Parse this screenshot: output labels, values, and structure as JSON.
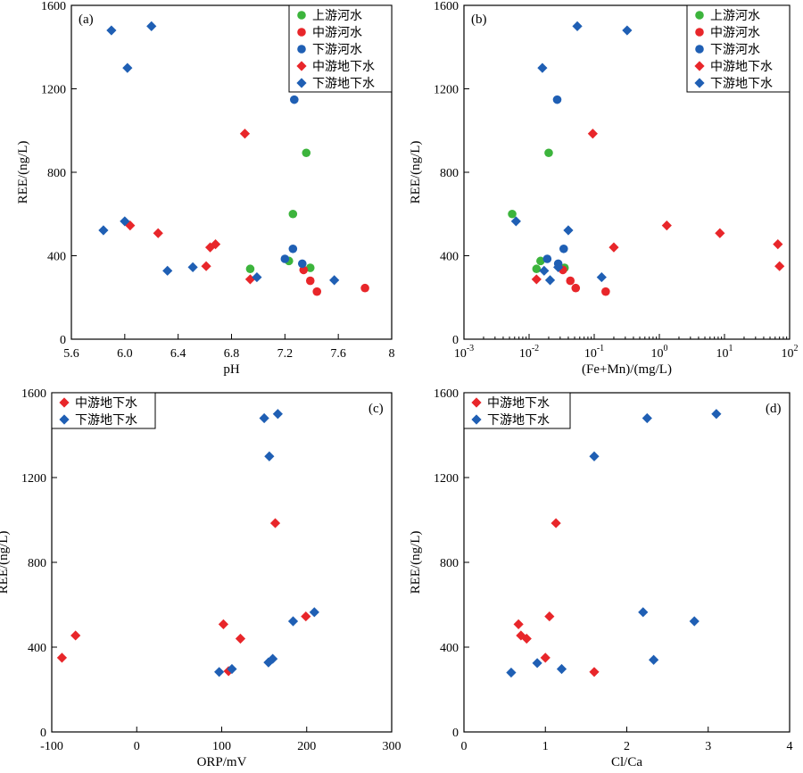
{
  "colors": {
    "upstream_river": "#3cb43c",
    "middle_river": "#e8262a",
    "lower_river": "#1f5fb4",
    "middle_groundwater": "#e8262a",
    "lower_groundwater": "#1f5fb4"
  },
  "legend_labels": {
    "upstream_river": "上游河水",
    "middle_river": "中游河水",
    "lower_river": "下游河水",
    "middle_groundwater": "中游地下水",
    "lower_groundwater": "下游地下水"
  },
  "chart_data": [
    {
      "id": "a",
      "panel_tag": "(a)",
      "type": "scatter",
      "xlabel": "pH",
      "ylabel": "REE/(ng/L)",
      "xlim": [
        5.6,
        8.0
      ],
      "ylim": [
        0,
        1600
      ],
      "xticks": [
        5.6,
        6.0,
        6.4,
        6.8,
        7.2,
        7.6,
        8.0
      ],
      "xtick_labels": [
        "5.6",
        "6.0",
        "6.4",
        "6.8",
        "7.2",
        "7.6",
        "8"
      ],
      "yticks": [
        0,
        400,
        800,
        1200,
        1600
      ],
      "ytick_labels": [
        "0",
        "400",
        "800",
        "1200",
        "1600"
      ],
      "x_scale": "linear",
      "legend_position": "top-right",
      "series": [
        {
          "name": "上游河水",
          "key": "upstream_river",
          "marker": "circle",
          "points": [
            [
              7.36,
              893
            ],
            [
              7.26,
              600
            ],
            [
              6.94,
              337
            ],
            [
              7.23,
              375
            ],
            [
              7.39,
              342
            ]
          ]
        },
        {
          "name": "中游河水",
          "key": "middle_river",
          "marker": "circle",
          "points": [
            [
              7.34,
              332
            ],
            [
              7.39,
              280
            ],
            [
              7.44,
              228
            ],
            [
              7.8,
              245
            ]
          ]
        },
        {
          "name": "下游河水",
          "key": "lower_river",
          "marker": "circle",
          "points": [
            [
              7.27,
              1148
            ],
            [
              7.26,
              433
            ],
            [
              7.2,
              385
            ],
            [
              7.33,
              362
            ]
          ]
        },
        {
          "name": "中游地下水",
          "key": "middle_groundwater",
          "marker": "diamond",
          "points": [
            [
              6.9,
              985
            ],
            [
              6.04,
              545
            ],
            [
              6.25,
              508
            ],
            [
              6.68,
              455
            ],
            [
              6.64,
              440
            ],
            [
              6.61,
              350
            ],
            [
              6.94,
              287
            ]
          ]
        },
        {
          "name": "下游地下水",
          "key": "lower_groundwater",
          "marker": "diamond",
          "points": [
            [
              5.9,
              1480
            ],
            [
              6.2,
              1500
            ],
            [
              6.02,
              1300
            ],
            [
              6.0,
              565
            ],
            [
              5.84,
              522
            ],
            [
              6.32,
              328
            ],
            [
              6.51,
              345
            ],
            [
              6.99,
              297
            ],
            [
              7.57,
              283
            ]
          ]
        }
      ]
    },
    {
      "id": "b",
      "panel_tag": "(b)",
      "type": "scatter",
      "xlabel": "(Fe+Mn)/(mg/L)",
      "ylabel": "REE/(ng/L)",
      "xlim": [
        0.001,
        100
      ],
      "ylim": [
        0,
        1600
      ],
      "x_scale": "log",
      "xticks": [
        0.001,
        0.01,
        0.1,
        1,
        10,
        100
      ],
      "xtick_labels": [
        [
          "10",
          "-3"
        ],
        [
          "10",
          "-2"
        ],
        [
          "10",
          "-1"
        ],
        [
          "10",
          "0"
        ],
        [
          "10",
          "1"
        ],
        [
          "10",
          "2"
        ]
      ],
      "yticks": [
        0,
        400,
        800,
        1200,
        1600
      ],
      "ytick_labels": [
        "0",
        "400",
        "800",
        "1200",
        "1600"
      ],
      "legend_position": "top-right",
      "series": [
        {
          "name": "上游河水",
          "key": "upstream_river",
          "marker": "circle",
          "points": [
            [
              0.02,
              893
            ],
            [
              0.0055,
              600
            ],
            [
              0.013,
              337
            ],
            [
              0.015,
              375
            ],
            [
              0.035,
              342
            ]
          ]
        },
        {
          "name": "中游河水",
          "key": "middle_river",
          "marker": "circle",
          "points": [
            [
              0.033,
              332
            ],
            [
              0.043,
              280
            ],
            [
              0.052,
              245
            ],
            [
              0.15,
              228
            ]
          ]
        },
        {
          "name": "下游河水",
          "key": "lower_river",
          "marker": "circle",
          "points": [
            [
              0.027,
              1148
            ],
            [
              0.034,
              433
            ],
            [
              0.019,
              385
            ],
            [
              0.028,
              362
            ]
          ]
        },
        {
          "name": "中游地下水",
          "key": "middle_groundwater",
          "marker": "diamond",
          "points": [
            [
              0.095,
              985
            ],
            [
              1.3,
              545
            ],
            [
              8.5,
              508
            ],
            [
              66,
              455
            ],
            [
              0.2,
              440
            ],
            [
              70,
              350
            ],
            [
              0.013,
              287
            ]
          ]
        },
        {
          "name": "下游地下水",
          "key": "lower_groundwater",
          "marker": "diamond",
          "points": [
            [
              0.055,
              1500
            ],
            [
              0.32,
              1480
            ],
            [
              0.016,
              1300
            ],
            [
              0.0063,
              565
            ],
            [
              0.04,
              522
            ],
            [
              0.017,
              328
            ],
            [
              0.028,
              345
            ],
            [
              0.021,
              283
            ],
            [
              0.13,
              297
            ]
          ]
        }
      ]
    },
    {
      "id": "c",
      "panel_tag": "(c)",
      "type": "scatter",
      "xlabel": "ORP/mV",
      "ylabel": "REE/(ng/L)",
      "xlim": [
        -100,
        300
      ],
      "ylim": [
        0,
        1600
      ],
      "x_scale": "linear",
      "xticks": [
        -100,
        0,
        100,
        200,
        300
      ],
      "xtick_labels": [
        "-100",
        "0",
        "100",
        "200",
        "300"
      ],
      "yticks": [
        0,
        400,
        800,
        1200,
        1600
      ],
      "ytick_labels": [
        "0",
        "400",
        "800",
        "1200",
        "1600"
      ],
      "legend_position": "top-left",
      "series": [
        {
          "name": "中游地下水",
          "key": "middle_groundwater",
          "marker": "diamond",
          "points": [
            [
              -88,
              350
            ],
            [
              -72,
              455
            ],
            [
              102,
              508
            ],
            [
              122,
              440
            ],
            [
              108,
              287
            ],
            [
              163,
              985
            ],
            [
              199,
              545
            ]
          ]
        },
        {
          "name": "下游地下水",
          "key": "lower_groundwater",
          "marker": "diamond",
          "points": [
            [
              150,
              1480
            ],
            [
              166,
              1500
            ],
            [
              156,
              1300
            ],
            [
              209,
              565
            ],
            [
              184,
              522
            ],
            [
              97,
              283
            ],
            [
              112,
              297
            ],
            [
              155,
              328
            ],
            [
              160,
              345
            ]
          ]
        }
      ]
    },
    {
      "id": "d",
      "panel_tag": "(d)",
      "type": "scatter",
      "xlabel": "Cl/Ca",
      "ylabel": "REE/(ng/L)",
      "xlim": [
        0,
        4
      ],
      "ylim": [
        0,
        1600
      ],
      "x_scale": "linear",
      "xticks": [
        0,
        1,
        2,
        3,
        4
      ],
      "xtick_labels": [
        "0",
        "1",
        "2",
        "3",
        "4"
      ],
      "yticks": [
        0,
        400,
        800,
        1200,
        1600
      ],
      "ytick_labels": [
        "0",
        "400",
        "800",
        "1200",
        "1600"
      ],
      "legend_position": "top-left",
      "series": [
        {
          "name": "中游地下水",
          "key": "middle_groundwater",
          "marker": "diamond",
          "points": [
            [
              0.67,
              508
            ],
            [
              0.7,
              455
            ],
            [
              0.77,
              440
            ],
            [
              1.05,
              545
            ],
            [
              1.0,
              350
            ],
            [
              1.13,
              985
            ],
            [
              1.6,
              283
            ]
          ]
        },
        {
          "name": "下游地下水",
          "key": "lower_groundwater",
          "marker": "diamond",
          "points": [
            [
              2.25,
              1480
            ],
            [
              3.1,
              1500
            ],
            [
              1.6,
              1300
            ],
            [
              2.2,
              565
            ],
            [
              2.83,
              522
            ],
            [
              2.33,
              340
            ],
            [
              0.9,
              325
            ],
            [
              1.2,
              297
            ],
            [
              0.58,
              280
            ]
          ]
        }
      ]
    }
  ]
}
